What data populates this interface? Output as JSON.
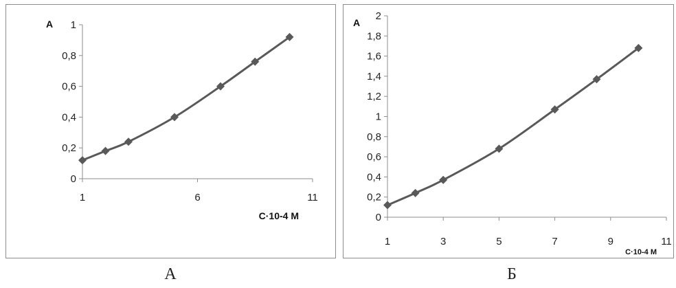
{
  "chart_data": [
    {
      "id": "chart-a",
      "type": "line",
      "ylabel": "A",
      "xlabel": "C·10-4 M",
      "xlim": [
        1,
        11
      ],
      "xticks": [
        1,
        6,
        11
      ],
      "ylim": [
        0,
        1
      ],
      "yticks": [
        "0",
        "0,2",
        "0,4",
        "0,6",
        "0,8",
        "1"
      ],
      "ytick_values": [
        0,
        0.2,
        0.4,
        0.6,
        0.8,
        1
      ],
      "grid": false,
      "series": [
        {
          "x": [
            1,
            2,
            3,
            5,
            7,
            8.5,
            10
          ],
          "y": [
            0.12,
            0.18,
            0.24,
            0.4,
            0.6,
            0.76,
            0.92
          ],
          "color": "#595959",
          "marker": "diamond"
        }
      ]
    },
    {
      "id": "chart-b",
      "type": "line",
      "ylabel": "A",
      "xlabel": "C·10-4 M",
      "xlim": [
        1,
        11
      ],
      "xticks": [
        1,
        3,
        5,
        7,
        9,
        11
      ],
      "ylim": [
        0,
        2
      ],
      "yticks": [
        "0",
        "0,2",
        "0,4",
        "0,6",
        "0,8",
        "1",
        "1,2",
        "1,4",
        "1,6",
        "1,8",
        "2"
      ],
      "ytick_values": [
        0,
        0.2,
        0.4,
        0.6,
        0.8,
        1,
        1.2,
        1.4,
        1.6,
        1.8,
        2
      ],
      "grid": false,
      "series": [
        {
          "x": [
            1,
            2,
            3,
            5,
            7,
            8.5,
            10
          ],
          "y": [
            0.12,
            0.24,
            0.37,
            0.68,
            1.07,
            1.37,
            1.68
          ],
          "color": "#595959",
          "marker": "diamond"
        }
      ]
    }
  ],
  "captions": {
    "a": "А",
    "b": "Б"
  }
}
